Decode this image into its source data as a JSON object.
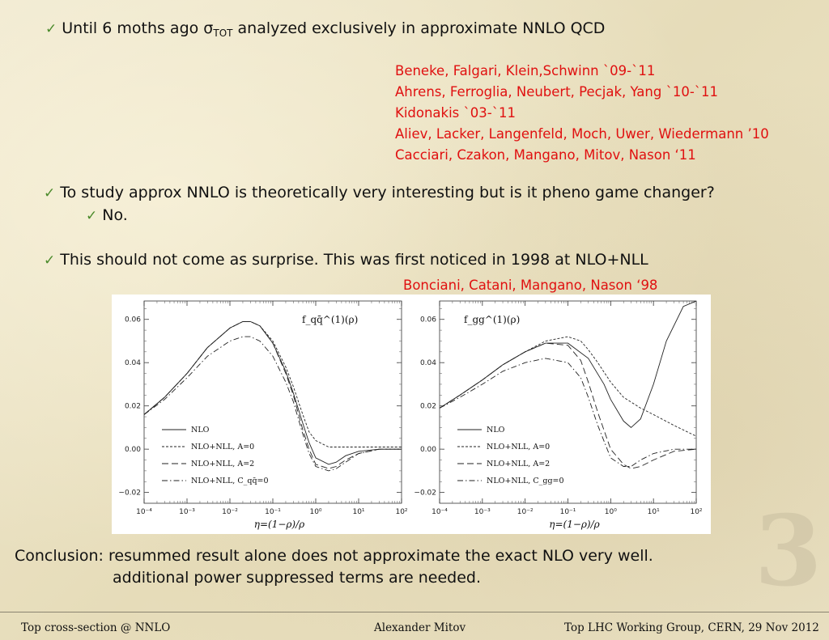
{
  "bullets": {
    "b1_prefix": "Until 6 moths ago σ",
    "b1_sub": "TOT",
    "b1_suffix": " analyzed exclusively in approximate NNLO QCD",
    "b2": "To study approx NNLO is theoretically very interesting but is it pheno game changer?",
    "b2_sub": "No.",
    "b3": "This should not come as surprise. This was first noticed in 1998 at NLO+NLL"
  },
  "references": [
    "Beneke, Falgari, Klein,Schwinn `09-`11",
    "Ahrens, Ferroglia, Neubert, Pecjak, Yang `10-`11",
    "Kidonakis `03-`11",
    "Aliev, Lacker, Langenfeld, Moch, Uwer, Wiedermann ’10",
    "Cacciari, Czakon, Mangano, Mitov, Nason ‘11"
  ],
  "reference_1998": "Bonciani, Catani, Mangano, Nason ‘98",
  "chart_data": [
    {
      "type": "line",
      "title": "f_qq̄^(1)(ρ)",
      "xlabel": "η=(1−ρ)/ρ",
      "xscale": "log",
      "xlim": [
        0.0001,
        100
      ],
      "ylim": [
        -0.02,
        0.07
      ],
      "x_ticks": [
        "10⁻⁴",
        "10⁻³",
        "10⁻²",
        "10⁻¹",
        "10⁰",
        "10¹",
        "10²"
      ],
      "y_ticks": [
        "0.06",
        "0.04",
        "0.02",
        "0.00",
        "−0.02"
      ],
      "legend_position": "bottom-left",
      "series": [
        {
          "name": "NLO",
          "style": "solid",
          "x": [
            0.0001,
            0.0003,
            0.001,
            0.003,
            0.01,
            0.02,
            0.03,
            0.05,
            0.1,
            0.2,
            0.3,
            0.5,
            0.7,
            1,
            2,
            3,
            5,
            10,
            30,
            100
          ],
          "y": [
            0.016,
            0.024,
            0.035,
            0.047,
            0.056,
            0.059,
            0.059,
            0.057,
            0.049,
            0.036,
            0.026,
            0.012,
            0.003,
            -0.004,
            -0.007,
            -0.006,
            -0.003,
            -0.001,
            0.0,
            0.0
          ]
        },
        {
          "name": "NLO+NLL, A=0",
          "style": "dashed-short",
          "x": [
            0.0001,
            0.0003,
            0.001,
            0.003,
            0.01,
            0.02,
            0.03,
            0.05,
            0.1,
            0.2,
            0.3,
            0.5,
            0.7,
            1,
            2,
            5,
            10,
            100
          ],
          "y": [
            0.016,
            0.024,
            0.035,
            0.047,
            0.056,
            0.059,
            0.059,
            0.057,
            0.05,
            0.038,
            0.029,
            0.016,
            0.008,
            0.004,
            0.001,
            0.001,
            0.001,
            0.001
          ]
        },
        {
          "name": "NLO+NLL, A=2",
          "style": "dashed-long",
          "x": [
            0.0001,
            0.0003,
            0.001,
            0.003,
            0.01,
            0.02,
            0.03,
            0.05,
            0.1,
            0.2,
            0.3,
            0.5,
            0.7,
            1,
            2,
            3,
            5,
            10,
            30,
            100
          ],
          "y": [
            0.016,
            0.024,
            0.035,
            0.047,
            0.056,
            0.059,
            0.059,
            0.057,
            0.049,
            0.035,
            0.025,
            0.009,
            0.0,
            -0.007,
            -0.009,
            -0.008,
            -0.005,
            -0.002,
            0.0,
            0.0
          ]
        },
        {
          "name": "NLO+NLL, C_qq̄=0",
          "style": "dashdot",
          "x": [
            0.0001,
            0.0003,
            0.001,
            0.003,
            0.01,
            0.02,
            0.03,
            0.05,
            0.1,
            0.2,
            0.3,
            0.5,
            0.7,
            1,
            2,
            3,
            5,
            10,
            30,
            100
          ],
          "y": [
            0.016,
            0.023,
            0.033,
            0.043,
            0.05,
            0.052,
            0.052,
            0.05,
            0.043,
            0.031,
            0.022,
            0.007,
            -0.002,
            -0.008,
            -0.01,
            -0.009,
            -0.006,
            -0.002,
            0.0,
            0.0
          ]
        }
      ]
    },
    {
      "type": "line",
      "title": "f_gg^(1)(ρ)",
      "xlabel": "η=(1−ρ)/ρ",
      "xscale": "log",
      "xlim": [
        0.0001,
        100
      ],
      "ylim": [
        -0.02,
        0.07
      ],
      "x_ticks": [
        "10⁻⁴",
        "10⁻³",
        "10⁻²",
        "10⁻¹",
        "10⁰",
        "10¹",
        "10²"
      ],
      "y_ticks": [
        "0.06",
        "0.04",
        "0.02",
        "0.00",
        "−0.02"
      ],
      "legend_position": "bottom-left",
      "series": [
        {
          "name": "NLO",
          "style": "solid",
          "x": [
            0.0001,
            0.0003,
            0.001,
            0.003,
            0.01,
            0.03,
            0.1,
            0.3,
            0.7,
            1,
            2,
            3,
            5,
            10,
            20,
            50,
            100
          ],
          "y": [
            0.019,
            0.025,
            0.032,
            0.039,
            0.045,
            0.049,
            0.049,
            0.042,
            0.03,
            0.023,
            0.013,
            0.01,
            0.014,
            0.03,
            0.05,
            0.066,
            0.07
          ]
        },
        {
          "name": "NLO+NLL, A=0",
          "style": "dashed-short",
          "x": [
            0.0001,
            0.0003,
            0.001,
            0.003,
            0.01,
            0.03,
            0.1,
            0.2,
            0.3,
            0.5,
            1,
            2,
            5,
            10,
            30,
            100
          ],
          "y": [
            0.019,
            0.025,
            0.032,
            0.039,
            0.045,
            0.05,
            0.052,
            0.05,
            0.046,
            0.04,
            0.031,
            0.024,
            0.019,
            0.016,
            0.011,
            0.006
          ]
        },
        {
          "name": "NLO+NLL, A=2",
          "style": "dashed-long",
          "x": [
            0.0001,
            0.0003,
            0.001,
            0.003,
            0.01,
            0.03,
            0.1,
            0.2,
            0.3,
            0.5,
            1,
            2,
            3,
            5,
            10,
            30,
            100
          ],
          "y": [
            0.019,
            0.025,
            0.032,
            0.039,
            0.045,
            0.049,
            0.048,
            0.041,
            0.031,
            0.017,
            0.0,
            -0.007,
            -0.009,
            -0.008,
            -0.005,
            -0.001,
            0.0
          ]
        },
        {
          "name": "NLO+NLL, C_gg=0",
          "style": "dashdot",
          "x": [
            0.0001,
            0.0003,
            0.001,
            0.003,
            0.01,
            0.03,
            0.1,
            0.2,
            0.3,
            0.5,
            1,
            2,
            3,
            5,
            10,
            30,
            100
          ],
          "y": [
            0.019,
            0.024,
            0.03,
            0.036,
            0.04,
            0.042,
            0.04,
            0.033,
            0.024,
            0.011,
            -0.004,
            -0.008,
            -0.008,
            -0.005,
            -0.002,
            0.0,
            0.0
          ]
        }
      ]
    }
  ],
  "conclusion": {
    "line1": "Conclusion: resummed result alone does not approximate the exact NLO very well.",
    "line2": "additional power suppressed terms are needed."
  },
  "page_number": "3",
  "footer": {
    "left": "Top cross-section @ NNLO",
    "center": "Alexander Mitov",
    "right": "Top LHC Working Group, CERN, 29 Nov 2012"
  },
  "colors": {
    "reference_red": "#e01010",
    "check_green": "#4a8a2a"
  }
}
